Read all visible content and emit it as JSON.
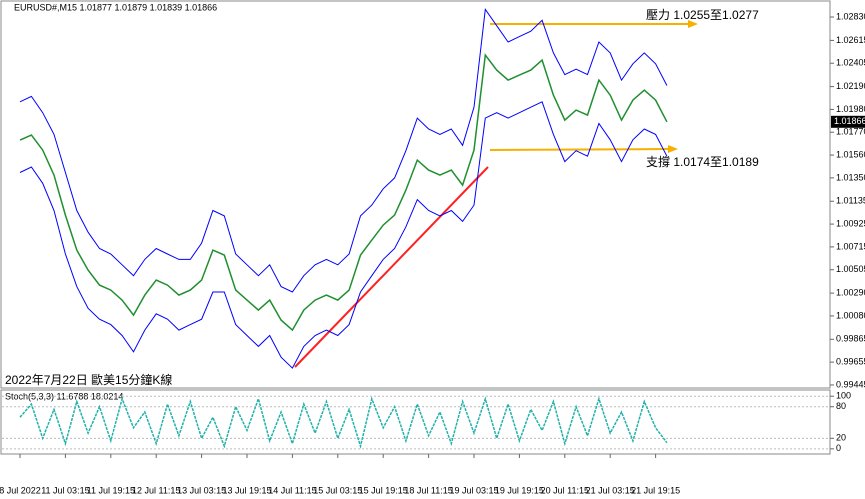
{
  "chart_data": [
    {
      "type": "line",
      "title": "EURUSD#,M15 1.01877 1.01879 1.01839 1.01866",
      "annotations": [
        "壓力 1.0255至1.0277",
        "支撐 1.0174至1.0189",
        "2022年7月22日 歐美15分鐘K線"
      ],
      "categories": [
        "8 Jul 2022",
        null,
        null,
        null,
        "11 Jul 03:15",
        null,
        null,
        null,
        "11 Jul 19:15",
        null,
        null,
        null,
        "12 Jul 11:15",
        null,
        null,
        null,
        "13 Jul 03:15",
        null,
        null,
        null,
        "13 Jul 19:15",
        null,
        null,
        null,
        "14 Jul 11:15",
        null,
        null,
        null,
        "15 Jul 03:15",
        null,
        null,
        null,
        "15 Jul 19:15",
        null,
        null,
        null,
        "18 Jul 11:15",
        null,
        null,
        null,
        "19 Jul 03:15",
        null,
        null,
        null,
        "19 Jul 19:15",
        null,
        null,
        null,
        "20 Jul 11:15",
        null,
        null,
        null,
        "21 Jul 03:15",
        null,
        null,
        null,
        "21 Jul 19:15",
        null
      ],
      "series": [
        {
          "color": "#1f8f2f",
          "values": [
            1.01698,
            1.01744,
            1.01606,
            1.01376,
            1.01008,
            1.00686,
            1.00502,
            1.00364,
            1.00318,
            1.00226,
            1.00088,
            1.00272,
            1.0041,
            1.00364,
            1.00272,
            1.00318,
            1.0041,
            1.00686,
            1.0064,
            1.00318,
            1.00226,
            1.00134,
            1.00226,
            1.00042,
            0.9995,
            1.00134,
            1.00226,
            1.00272,
            1.00226,
            1.00318,
            1.0064,
            1.00778,
            1.00916,
            1.01008,
            1.01238,
            1.01514,
            1.01422,
            1.01376,
            1.01422,
            1.01284,
            1.01606,
            1.0248,
            1.02342,
            1.0225,
            1.02296,
            1.02342,
            1.02434,
            1.02112,
            1.01882,
            1.01974,
            1.01928,
            1.0225,
            1.02112,
            1.01882,
            1.02066,
            1.02158,
            1.02066,
            1.01866
          ]
        },
        {
          "color": "#0000ff",
          "values": [
            1.0205,
            1.021,
            1.0195,
            1.0175,
            1.014,
            1.0105,
            1.0085,
            1.007,
            1.0065,
            1.0055,
            1.0045,
            1.006,
            1.007,
            1.0065,
            1.006,
            1.006,
            1.0075,
            1.0105,
            1.01,
            1.0065,
            1.0055,
            1.0045,
            1.0055,
            1.0035,
            1.003,
            1.0045,
            1.0055,
            1.006,
            1.0055,
            1.0065,
            1.01,
            1.011,
            1.0125,
            1.0135,
            1.016,
            1.019,
            1.018,
            1.0175,
            1.018,
            1.0165,
            1.02,
            1.029,
            1.0275,
            1.026,
            1.0265,
            1.027,
            1.028,
            1.025,
            1.023,
            1.0235,
            1.023,
            1.026,
            1.025,
            1.0225,
            1.024,
            1.025,
            1.024,
            1.022
          ]
        },
        {
          "color": "#0000ff",
          "values": [
            1.014,
            1.0145,
            1.013,
            1.0105,
            1.0065,
            1.0035,
            1.0015,
            1.0005,
            1.0,
            0.999,
            0.9975,
            0.9995,
            1.001,
            1.0005,
            0.9995,
            1.0,
            1.0005,
            1.003,
            1.003,
            1.0,
            0.999,
            0.998,
            0.999,
            0.997,
            0.996,
            0.998,
            0.999,
            0.9995,
            0.999,
            1.0,
            1.003,
            1.0045,
            1.006,
            1.007,
            1.009,
            1.0115,
            1.0105,
            1.01,
            1.0105,
            1.0095,
            1.011,
            1.019,
            1.0195,
            1.019,
            1.0195,
            1.02,
            1.0205,
            1.0175,
            1.015,
            1.016,
            1.0155,
            1.0185,
            1.017,
            1.015,
            1.017,
            1.018,
            1.0175,
            1.0155
          ]
        }
      ],
      "ylim": [
        0.99417,
        1.02959
      ],
      "yticks": [
        {
          "value": 1.0283,
          "label": "1.02830"
        },
        1.02615,
        1.02405,
        {
          "value": 1.0219,
          "label": "1.02190"
        },
        {
          "value": 1.0198,
          "label": "1.01980"
        },
        {
          "value": 1.0177,
          "label": "1.01770"
        },
        {
          "value": 1.0156,
          "label": "1.01560"
        },
        {
          "value": 1.0135,
          "label": "1.01350"
        },
        1.01135,
        1.00925,
        1.00715,
        1.00505,
        {
          "value": 1.0029,
          "label": "1.00290"
        },
        {
          "value": 1.0008,
          "label": "1.00080"
        },
        0.99865,
        0.99655,
        0.99445
      ]
    },
    {
      "type": "line",
      "title": "Stoch(5,3,3) 11.6788 18.0214",
      "series": [
        {
          "color": "#20b2aa",
          "values": [
            60,
            85,
            20,
            75,
            10,
            90,
            30,
            80,
            15,
            95,
            40,
            70,
            10,
            85,
            25,
            90,
            20,
            60,
            5,
            80,
            35,
            95,
            15,
            70,
            10,
            85,
            30,
            90,
            20,
            75,
            5,
            95,
            40,
            80,
            15,
            85,
            25,
            70,
            10,
            90,
            30,
            95,
            20,
            85,
            15,
            75,
            35,
            90,
            10,
            80,
            25,
            95,
            30,
            70,
            15,
            90,
            40,
            11.6788
          ]
        }
      ],
      "ylim": [
        -6,
        108
      ],
      "yticks": [
        0,
        20,
        80,
        100
      ]
    }
  ]
}
